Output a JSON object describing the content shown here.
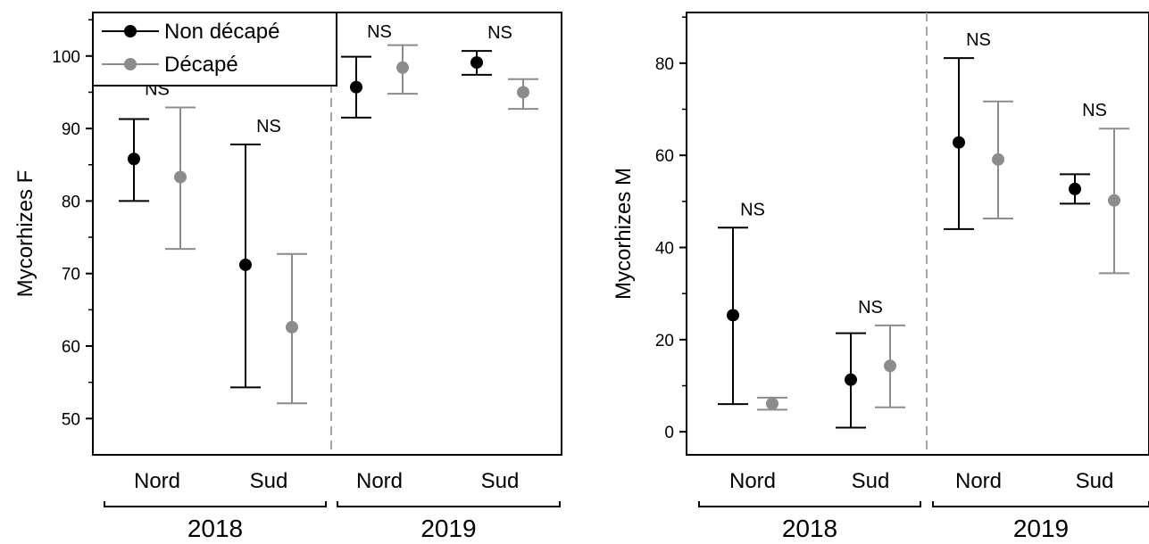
{
  "colors": {
    "non_decape": "#000000",
    "decape": "#8c8c8c",
    "separator": "#a6a6a6"
  },
  "chart_data": [
    {
      "type": "scatter",
      "ylabel": "Mycorhizes F",
      "ylim": [
        45,
        106
      ],
      "yticks": [
        50,
        60,
        70,
        80,
        90,
        100
      ],
      "categories": [
        "Nord",
        "Sud",
        "Nord",
        "Sud"
      ],
      "years": [
        {
          "label": "2018",
          "categories": [
            0,
            1
          ]
        },
        {
          "label": "2019",
          "categories": [
            2,
            3
          ]
        }
      ],
      "significance": [
        "NS",
        "NS",
        "NS",
        "NS"
      ],
      "legend": {
        "position": "top-left",
        "entries": [
          "Non décapé",
          "Décapé"
        ]
      },
      "series": [
        {
          "name": "Non décapé",
          "color": "#000000",
          "values": [
            85.8,
            71.2,
            95.7,
            99.1
          ],
          "err_low": [
            80.0,
            54.3,
            91.5,
            97.4
          ],
          "err_high": [
            91.3,
            87.8,
            99.9,
            100.7
          ]
        },
        {
          "name": "Décapé",
          "color": "#8c8c8c",
          "values": [
            83.3,
            62.6,
            98.4,
            95.0
          ],
          "err_low": [
            73.4,
            52.1,
            94.8,
            92.7
          ],
          "err_high": [
            92.9,
            72.7,
            101.5,
            96.8
          ]
        }
      ]
    },
    {
      "type": "scatter",
      "ylabel": "Mycorhizes M",
      "ylim": [
        -5,
        91
      ],
      "yticks": [
        0,
        20,
        40,
        60,
        80
      ],
      "categories": [
        "Nord",
        "Sud",
        "Nord",
        "Sud"
      ],
      "years": [
        {
          "label": "2018",
          "categories": [
            0,
            1
          ]
        },
        {
          "label": "2019",
          "categories": [
            2,
            3
          ]
        }
      ],
      "significance": [
        "NS",
        "NS",
        "NS",
        "NS"
      ],
      "series": [
        {
          "name": "Non décapé",
          "color": "#000000",
          "values": [
            25.3,
            11.3,
            62.8,
            52.7
          ],
          "err_low": [
            6.0,
            0.9,
            44.0,
            49.5
          ],
          "err_high": [
            44.3,
            21.4,
            81.1,
            55.9
          ]
        },
        {
          "name": "Décapé",
          "color": "#8c8c8c",
          "values": [
            6.1,
            14.3,
            59.1,
            50.2
          ],
          "err_low": [
            4.8,
            5.3,
            46.3,
            34.4
          ],
          "err_high": [
            7.4,
            23.1,
            71.7,
            65.8
          ]
        }
      ]
    }
  ]
}
